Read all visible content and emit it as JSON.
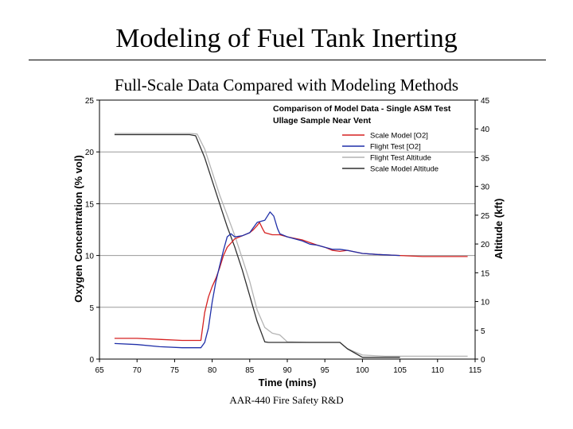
{
  "slide": {
    "title": "Modeling of Fuel Tank Inerting",
    "subtitle": "Full-Scale Data Compared with Modeling Methods",
    "footer": "AAR-440 Fire Safety R&D"
  },
  "chart_data": {
    "type": "line",
    "title": "Comparison of Model Data - Single ASM Test",
    "subtitle": "Ullage Sample Near Vent",
    "xlabel": "Time (mins)",
    "ylabel": "Oxygen Concentration (% vol)",
    "y2label": "Altitude (kft)",
    "xlim": [
      65,
      115
    ],
    "ylim": [
      0,
      25
    ],
    "y2lim": [
      0,
      45
    ],
    "x_ticks": [
      "65",
      "70",
      "75",
      "80",
      "85",
      "90",
      "95",
      "100",
      "105",
      "110",
      "115"
    ],
    "y_ticks": [
      "0",
      "5",
      "10",
      "15",
      "20",
      "25"
    ],
    "y2_ticks": [
      "0",
      "5",
      "10",
      "15",
      "20",
      "25",
      "30",
      "35",
      "40",
      "45"
    ],
    "gridlines": "horizontal at 5, 10, 15, 20",
    "legend_position": "top-right",
    "series": [
      {
        "name": "Scale Model [O2]",
        "axis": "left",
        "color": "#d62020",
        "points": [
          [
            67,
            2.0
          ],
          [
            70,
            2.0
          ],
          [
            73,
            1.9
          ],
          [
            76,
            1.8
          ],
          [
            78.5,
            1.8
          ],
          [
            79,
            4.5
          ],
          [
            79.5,
            6.0
          ],
          [
            80,
            7.0
          ],
          [
            80.5,
            7.8
          ],
          [
            81,
            8.8
          ],
          [
            81.5,
            10.0
          ],
          [
            82,
            10.8
          ],
          [
            82.5,
            11.2
          ],
          [
            83,
            11.6
          ],
          [
            84,
            11.9
          ],
          [
            85,
            12.2
          ],
          [
            85.5,
            12.5
          ],
          [
            86,
            12.9
          ],
          [
            86.3,
            13.2
          ],
          [
            86.7,
            12.6
          ],
          [
            87,
            12.2
          ],
          [
            88,
            12.0
          ],
          [
            89,
            12.0
          ],
          [
            90,
            11.8
          ],
          [
            92,
            11.5
          ],
          [
            94,
            11.0
          ],
          [
            95,
            10.8
          ],
          [
            96,
            10.5
          ],
          [
            97,
            10.4
          ],
          [
            98,
            10.5
          ],
          [
            100,
            10.2
          ],
          [
            102,
            10.1
          ],
          [
            105,
            10.0
          ],
          [
            108,
            9.9
          ],
          [
            111,
            9.9
          ],
          [
            114,
            9.9
          ]
        ]
      },
      {
        "name": "Flight Test [O2]",
        "axis": "left",
        "color": "#1f2fa8",
        "points": [
          [
            67,
            1.5
          ],
          [
            70,
            1.4
          ],
          [
            73,
            1.2
          ],
          [
            76,
            1.1
          ],
          [
            78.5,
            1.1
          ],
          [
            79,
            1.6
          ],
          [
            79.5,
            3.0
          ],
          [
            80,
            5.5
          ],
          [
            80.5,
            7.5
          ],
          [
            81,
            9.0
          ],
          [
            81.5,
            10.5
          ],
          [
            82,
            11.8
          ],
          [
            82.5,
            12.1
          ],
          [
            83,
            11.8
          ],
          [
            84,
            11.9
          ],
          [
            85,
            12.2
          ],
          [
            86,
            13.2
          ],
          [
            87,
            13.4
          ],
          [
            87.7,
            14.2
          ],
          [
            88.2,
            13.8
          ],
          [
            88.7,
            12.6
          ],
          [
            89,
            12.1
          ],
          [
            90,
            11.8
          ],
          [
            92,
            11.4
          ],
          [
            93,
            11.1
          ],
          [
            94,
            11.0
          ],
          [
            95,
            10.8
          ],
          [
            96,
            10.6
          ],
          [
            97,
            10.6
          ],
          [
            98,
            10.5
          ],
          [
            100,
            10.2
          ],
          [
            102,
            10.1
          ],
          [
            105,
            10.0
          ]
        ]
      },
      {
        "name": "Flight Test Altitude",
        "axis": "right",
        "color": "#b4b4b4",
        "points": [
          [
            67,
            39.2
          ],
          [
            70,
            39.2
          ],
          [
            73,
            39.2
          ],
          [
            77,
            39.2
          ],
          [
            78,
            39.1
          ],
          [
            79,
            36.5
          ],
          [
            80,
            32.5
          ],
          [
            81,
            28.5
          ],
          [
            82,
            25.0
          ],
          [
            83,
            21.5
          ],
          [
            84,
            17.5
          ],
          [
            85,
            13.5
          ],
          [
            86,
            8.5
          ],
          [
            87,
            5.5
          ],
          [
            88,
            4.5
          ],
          [
            89,
            4.2
          ],
          [
            90,
            3.0
          ],
          [
            93,
            2.9
          ],
          [
            97,
            2.9
          ],
          [
            98,
            1.8
          ],
          [
            100,
            0.7
          ],
          [
            103,
            0.5
          ],
          [
            108,
            0.5
          ],
          [
            114,
            0.5
          ]
        ]
      },
      {
        "name": "Scale Model Altitude",
        "axis": "right",
        "color": "#303030",
        "points": [
          [
            67,
            39.0
          ],
          [
            70,
            39.0
          ],
          [
            73,
            39.0
          ],
          [
            77,
            39.0
          ],
          [
            77.8,
            38.8
          ],
          [
            79,
            35.0
          ],
          [
            80,
            31.0
          ],
          [
            81,
            27.0
          ],
          [
            82,
            23.0
          ],
          [
            83,
            19.5
          ],
          [
            84,
            15.5
          ],
          [
            85,
            11.0
          ],
          [
            86,
            6.5
          ],
          [
            87,
            3.0
          ],
          [
            87.5,
            2.9
          ],
          [
            90,
            2.9
          ],
          [
            93,
            2.9
          ],
          [
            97,
            2.9
          ],
          [
            98,
            1.8
          ],
          [
            100,
            0.3
          ],
          [
            105,
            0.3
          ]
        ]
      }
    ]
  }
}
